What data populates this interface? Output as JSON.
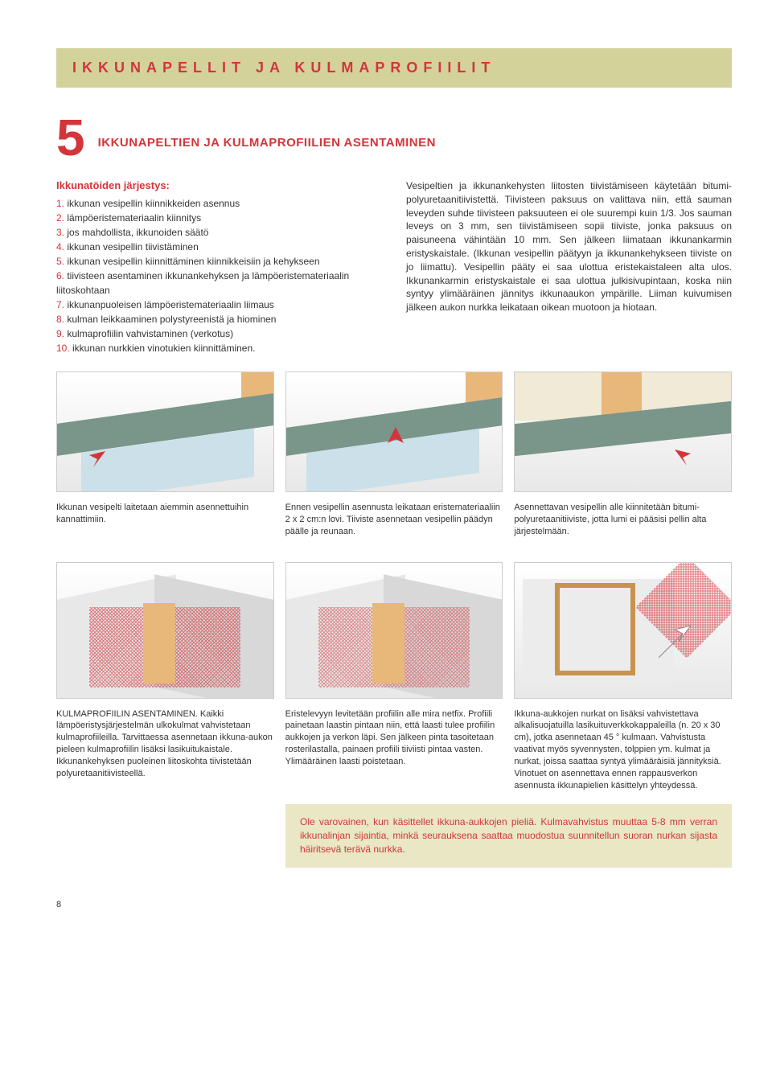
{
  "header": {
    "title": "IKKUNAPELLIT JA KULMAPROFIILIT"
  },
  "section": {
    "number": "5",
    "title": "IKKUNAPELTIEN JA KULMAPROFIILIEN ASENTAMINEN"
  },
  "left_col": {
    "subhead": "Ikkunatöiden järjestys:",
    "items": [
      "ikkunan vesipellin kiinnikkeiden asennus",
      "lämpöeristemateriaalin kiinnitys",
      "jos mahdollista, ikkunoiden säätö",
      "ikkunan vesipellin tiivistäminen",
      "ikkunan vesipellin kiinnittäminen kiinnikkeisiin ja kehykseen",
      "tiivisteen asentaminen ikkunankehyksen ja lämpöeristemateriaalin liitoskohtaan",
      "ikkunanpuoleisen lämpöeristemateriaalin liimaus",
      "kulman leikkaaminen polystyreenistä ja hiominen",
      "kulmaprofiilin vahvistaminen (verkotus)",
      "ikkunan nurkkien vinotukien kiinnittäminen."
    ]
  },
  "right_col": {
    "text": "Vesipeltien ja ikkunankehysten liitosten tiivistämiseen käytetään bitumi-polyuretaanitiivistettä. Tiivisteen paksuus on valittava niin, että sauman leveyden suhde tiivisteen paksuuteen ei ole suurempi kuin 1/3. Jos sauman leveys on 3 mm, sen tiivistämiseen sopii tiiviste, jonka paksuus on paisuneena vähintään 10 mm. Sen jälkeen liimataan ikkunankarmin eristyskaistale. (Ikkunan vesipellin päätyyn ja ikkunankehykseen tiiviste on jo liimattu). Vesipellin pääty ei saa ulottua eristekaistaleen alta ulos. Ikkunankarmin eristyskaistale ei saa ulottua julkisivupintaan, koska niin syntyy ylimääräinen jännitys ikkunaaukon ympärille. Liiman kuivumisen jälkeen aukon nurkka leikataan oikean muotoon ja hiotaan."
  },
  "captions_row1": [
    "Ikkunan vesipelti laitetaan aiemmin asennettuihin kannattimiin.",
    "Ennen vesipellin asennusta leikataan eristemateriaaliin 2 x 2 cm:n lovi. Tiiviste asennetaan vesipellin päädyn päälle ja reunaan.",
    "Asennettavan vesipellin alle kiinnitetään bitumi-polyuretaanitiiviste, jotta lumi ei pääsisi pellin alta järjestelmään."
  ],
  "captions_row2": [
    "KULMAPROFIILIN ASENTAMINEN. Kaikki lämpöeristysjärjestelmän ulkokulmat vahvistetaan kulmaprofiileilla. Tarvittaessa asennetaan ikkuna-aukon pieleen kulmaprofiilin lisäksi lasikuitukaistale. Ikkunankehyksen puoleinen liitoskohta tiivistetään polyuretaanitiivisteellä.",
    "Eristelevyyn levitetään profiilin alle mira netfix. Profiili painetaan laastin pintaan niin, että laasti tulee profiilin aukkojen ja verkon läpi. Sen jälkeen pinta tasoitetaan rosterilastalla, painaen profiili tiiviisti pintaa vasten. Ylimääräinen laasti poistetaan.",
    "Ikkuna-aukkojen nurkat on lisäksi vahvistettava alkalisuojatuilla lasikuituverkkokappaleilla (n. 20 x 30 cm), jotka asennetaan 45 ° kulmaan. Vahvistusta vaativat myös syvennysten, tolppien ym. kulmat ja nurkat, joissa saattaa syntyä ylimääräisiä jännityksiä. Vinotuet on asennettava ennen rappausverkon asennusta ikkunapielien käsittelyn yhteydessä."
  ],
  "warning": "Ole varovainen, kun käsittellet ikkuna-aukkojen pieliä. Kulmavahvistus muuttaa 5-8 mm verran ikkunalinjan sijaintia, minkä seurauksena saattaa muodostua suunnitellun suoran nurkan sijasta häiritsevä terävä nurkka.",
  "page_number": "8",
  "colors": {
    "red": "#d4353a",
    "olive_bg": "#d4d29b",
    "warning_bg": "#e9e7c4",
    "sill_green": "#7a958a",
    "wall_tan": "#e8b87a"
  }
}
